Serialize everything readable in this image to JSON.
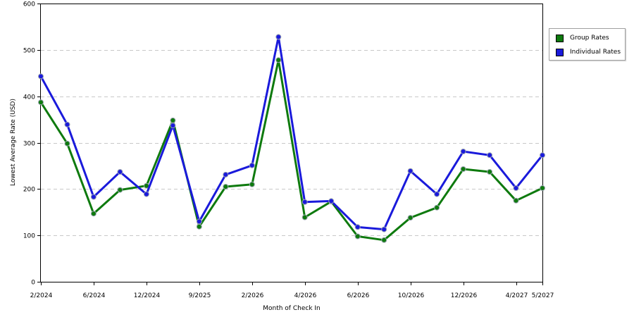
{
  "chart_data": {
    "type": "line",
    "title": "",
    "xlabel": "Month of Check In",
    "ylabel": "Lowest Average Rate (USD)",
    "ylim": [
      0,
      600
    ],
    "yticks": [
      "0",
      "100",
      "200",
      "300",
      "400",
      "500",
      "600"
    ],
    "grid": true,
    "legend_position": "right",
    "x_tick_labels": [
      "2/2024",
      "6/2024",
      "12/2024",
      "9/2025",
      "2/2026",
      "4/2026",
      "6/2026",
      "10/2026",
      "12/2026",
      "4/2027",
      "5/2027"
    ],
    "x_tick_positions": [
      0,
      2,
      4,
      6,
      8,
      10,
      12,
      14,
      16,
      18,
      19
    ],
    "num_points": 20,
    "series": [
      {
        "name": "Group Rates",
        "color": "#0e7a0e",
        "values": [
          387,
          298,
          147,
          198,
          207,
          348,
          119,
          205,
          210,
          478,
          139,
          173,
          98,
          90,
          138,
          160,
          243,
          237,
          175,
          202
        ]
      },
      {
        "name": "Individual Rates",
        "color": "#1a1adb",
        "values": [
          443,
          339,
          183,
          237,
          189,
          337,
          130,
          231,
          251,
          528,
          172,
          174,
          118,
          113,
          239,
          189,
          281,
          273,
          202,
          273
        ]
      }
    ]
  }
}
